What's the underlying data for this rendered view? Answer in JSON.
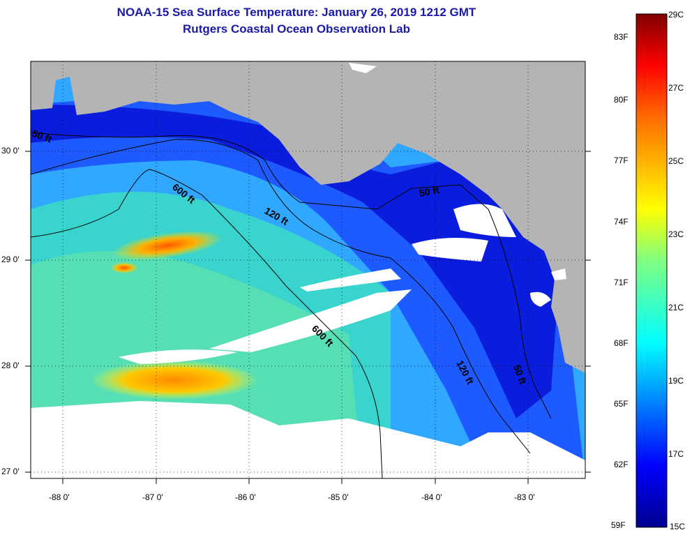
{
  "title": "NOAA-15 Sea Surface Temperature:  January 26, 2019 1212 GMT",
  "subtitle": "Rutgers Coastal Ocean Observation Lab",
  "lat_labels": [
    "30 0'",
    "29 0'",
    "28 0'",
    "27 0'"
  ],
  "lon_labels": [
    "-88 0'",
    "-87 0'",
    "-86 0'",
    "-85 0'",
    "-84 0'",
    "-83 0'"
  ],
  "contours": {
    "c50_west": "50 ft",
    "c600_north": "600 ft",
    "c120_north": "120 ft",
    "c50_east": "50 ft",
    "c600_south": "600 ft",
    "c120_south": "120 ft",
    "c50_south": "50 ft"
  },
  "colorbar": {
    "f_labels": [
      "83F",
      "80F",
      "77F",
      "74F",
      "71F",
      "68F",
      "65F",
      "62F",
      "59F"
    ],
    "c_labels": [
      "29C",
      "27C",
      "25C",
      "23C",
      "21C",
      "19C",
      "17C",
      "15C"
    ]
  },
  "colors": {
    "land": "#b4b4b4",
    "no_data": "#ffffff",
    "title": "#1a1aa8"
  }
}
